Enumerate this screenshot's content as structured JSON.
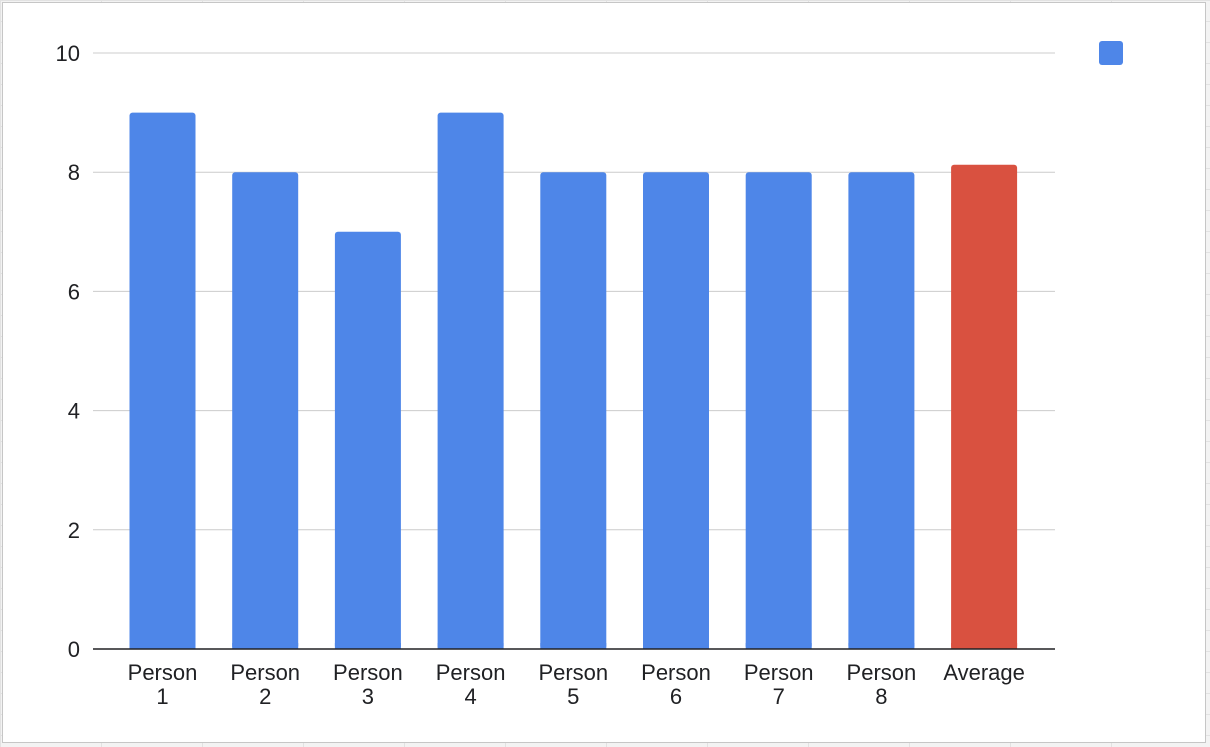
{
  "chart_data": {
    "type": "bar",
    "title": "",
    "xlabel": "",
    "ylabel": "",
    "categories": [
      [
        "Person",
        "1"
      ],
      [
        "Person",
        "2"
      ],
      [
        "Person",
        "3"
      ],
      [
        "Person",
        "4"
      ],
      [
        "Person",
        "5"
      ],
      [
        "Person",
        "6"
      ],
      [
        "Person",
        "7"
      ],
      [
        "Person",
        "8"
      ],
      [
        "Average"
      ]
    ],
    "values": [
      9,
      8,
      7,
      9,
      8,
      8,
      8,
      8,
      8.125
    ],
    "ylim": [
      0,
      10
    ],
    "yticks": [
      "0",
      "2",
      "4",
      "6",
      "8",
      "10"
    ],
    "grid": true,
    "legend_position": "top-right",
    "colors": {
      "bar": "#4e86e8",
      "highlight": "#d95140",
      "grid": "#cccccc",
      "axis": "#202124"
    }
  }
}
